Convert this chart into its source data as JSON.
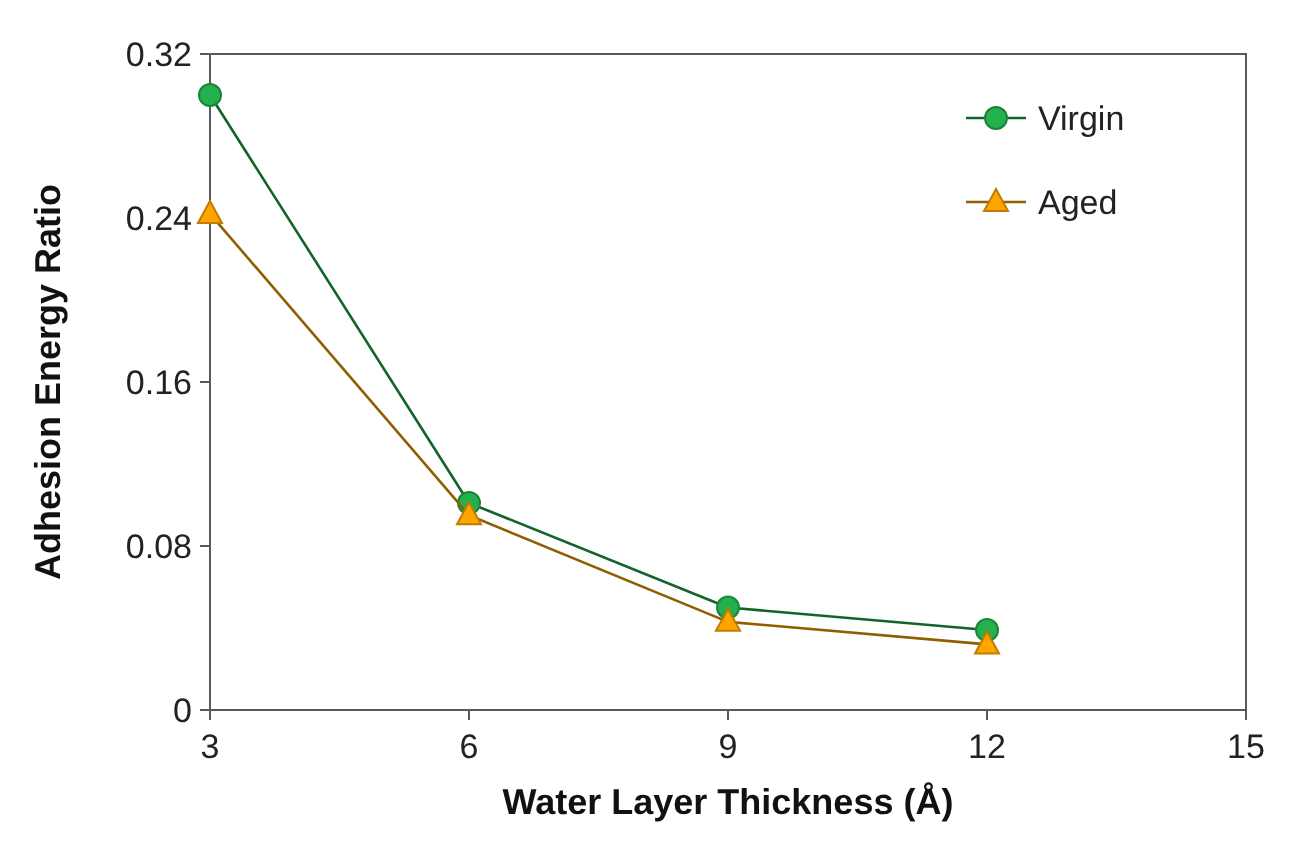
{
  "chart_data": {
    "type": "line",
    "xlabel": "Water Layer Thickness (Å)",
    "ylabel": "Adhesion Energy Ratio",
    "x": [
      3,
      6,
      9,
      12
    ],
    "xlim": [
      3,
      15
    ],
    "xticks": [
      3,
      6,
      9,
      12,
      15
    ],
    "ylim": [
      0,
      0.32
    ],
    "yticks": [
      0,
      0.08,
      0.16,
      0.24,
      0.32
    ],
    "grid": false,
    "legend": "top right",
    "series": [
      {
        "name": "Virgin",
        "color": "#22b14c",
        "marker": "circle",
        "values": [
          0.3,
          0.101,
          0.05,
          0.039
        ]
      },
      {
        "name": "Aged",
        "color": "#ffa500",
        "marker": "triangle",
        "values": [
          0.242,
          0.095,
          0.043,
          0.032
        ]
      }
    ]
  }
}
